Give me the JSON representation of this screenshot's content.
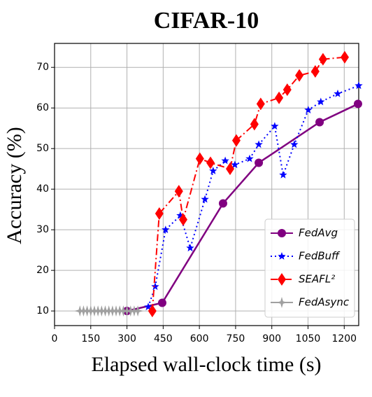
{
  "chart_data": {
    "type": "line",
    "title": "CIFAR-10",
    "x_label": "Elapsed wall-clock time (s)",
    "y_label": "Accuracy (%)",
    "xlim": [
      0,
      1260
    ],
    "ylim": [
      6.4,
      75.9
    ],
    "xticks": [
      0,
      150,
      300,
      450,
      600,
      750,
      900,
      1050,
      1200
    ],
    "yticks": [
      10,
      20,
      30,
      40,
      50,
      60,
      70
    ],
    "grid": true,
    "legend": "lower right",
    "series": [
      {
        "name": "FedAvg",
        "color": "#800080",
        "marker": "circle",
        "linestyle": "solid",
        "x": [
          300,
          446,
          698,
          846,
          1098,
          1257
        ],
        "values": [
          10,
          12,
          36.5,
          46.5,
          56.5,
          61
        ]
      },
      {
        "name": "FedBuff",
        "color": "#0000ff",
        "marker": "star",
        "linestyle": "dotted",
        "x": [
          388,
          417,
          460,
          521,
          562,
          623,
          657,
          707,
          747,
          808,
          846,
          912,
          947,
          993,
          1051,
          1103,
          1173,
          1260
        ],
        "values": [
          11,
          16,
          30,
          33.5,
          25.5,
          37.5,
          44.5,
          47,
          46,
          47.5,
          51,
          55.5,
          43.5,
          51,
          59.5,
          61.5,
          63.5,
          65.5
        ]
      },
      {
        "name": "SEAFL²",
        "color": "#ff0000",
        "marker": "diamond",
        "linestyle": "dashdot",
        "x": [
          405,
          434,
          515,
          533,
          602,
          646,
          727,
          753,
          828,
          854,
          930,
          964,
          1014,
          1080,
          1112,
          1202
        ],
        "values": [
          10,
          34,
          39.5,
          32.5,
          47.5,
          46.5,
          45,
          52,
          56,
          61,
          62.5,
          64.5,
          68,
          69,
          72,
          72.5
        ]
      },
      {
        "name": "FedAsync",
        "color": "#a0a0a0",
        "marker": "star4",
        "linestyle": "solid",
        "x": [
          105,
          120,
          135,
          150,
          165,
          180,
          195,
          210,
          225,
          240,
          255,
          270,
          285,
          300,
          315,
          330,
          345
        ],
        "values": [
          10,
          10,
          10,
          10,
          10,
          10,
          10,
          10,
          10,
          10,
          10,
          10,
          10,
          10,
          10,
          10,
          10
        ]
      }
    ]
  }
}
